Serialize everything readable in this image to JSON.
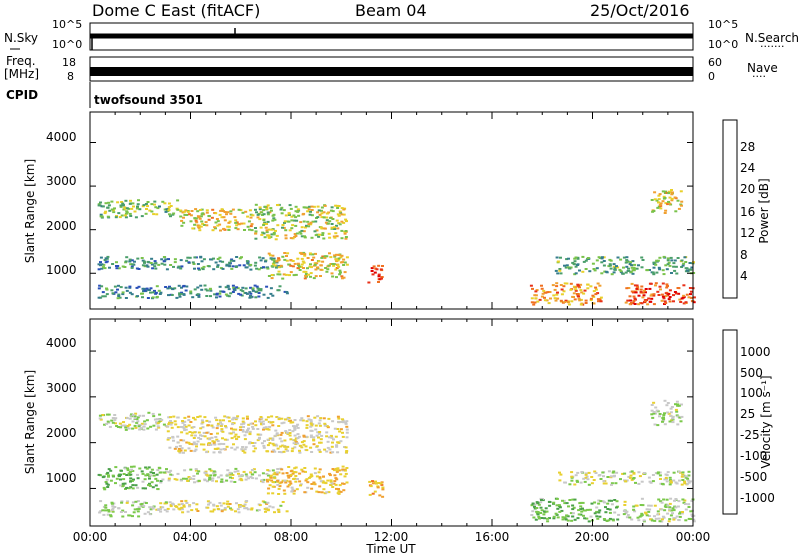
{
  "header": {
    "station": "Dome C East (fitACF)",
    "beam": "Beam 04",
    "date": "25/Oct/2016"
  },
  "nsky_panel": {
    "label": "N.Sky",
    "left_ticks": [
      "10^5",
      "10^0"
    ],
    "right_ticks": [
      "10^5",
      "10^0"
    ],
    "right_label": "N.Search",
    "right_dots": "·······"
  },
  "freq_panel": {
    "label_line1": "Freq.",
    "label_line2": "[MHz]",
    "left_ticks": [
      "18",
      "8"
    ],
    "right_ticks": [
      "60",
      "0"
    ],
    "right_label": "Nave",
    "right_dots": "····"
  },
  "cpid_panel": {
    "label": "CPID",
    "text": "twofsound 3501"
  },
  "chart_data": [
    {
      "type": "heatmap",
      "name": "power",
      "ylabel": "Slant Range [km]",
      "ylim": [
        180,
        4700
      ],
      "yticks": [
        "4000",
        "3000",
        "2000",
        "1000"
      ],
      "xlim": [
        "00:00",
        "24:00"
      ],
      "colorbar": {
        "label": "Power [dB]",
        "ticks": [
          "28",
          "24",
          "20",
          "16",
          "12",
          "8",
          "4"
        ],
        "range": [
          0,
          32
        ],
        "colors": [
          "#1010e0",
          "#2a50b8",
          "#357d8c",
          "#4a9e6a",
          "#79c24a",
          "#e8d02a",
          "#f0a030",
          "#f07020",
          "#e83018",
          "#e00000"
        ]
      },
      "features": [
        {
          "t0": 0.3,
          "t1": 3.5,
          "r0": 2300,
          "r1": 2700,
          "value": 14
        },
        {
          "t0": 3.5,
          "t1": 6.5,
          "r0": 2000,
          "r1": 2500,
          "value": 18
        },
        {
          "t0": 6.5,
          "t1": 10.2,
          "r0": 1800,
          "r1": 2600,
          "value": 16
        },
        {
          "t0": 0.3,
          "t1": 7.5,
          "r0": 1100,
          "r1": 1400,
          "value": 10
        },
        {
          "t0": 7.0,
          "t1": 10.2,
          "r0": 900,
          "r1": 1500,
          "value": 18
        },
        {
          "t0": 0.3,
          "t1": 7.8,
          "r0": 450,
          "r1": 750,
          "value": 9
        },
        {
          "t0": 11.0,
          "t1": 11.6,
          "r0": 800,
          "r1": 1200,
          "value": 26
        },
        {
          "t0": 17.5,
          "t1": 20.3,
          "r0": 300,
          "r1": 800,
          "value": 22
        },
        {
          "t0": 21.2,
          "t1": 24.0,
          "r0": 300,
          "r1": 800,
          "value": 26
        },
        {
          "t0": 18.5,
          "t1": 24.0,
          "r0": 1000,
          "r1": 1400,
          "value": 12
        },
        {
          "t0": 22.3,
          "t1": 23.5,
          "r0": 2400,
          "r1": 2950,
          "value": 18
        }
      ]
    },
    {
      "type": "heatmap",
      "name": "velocity",
      "ylabel": "Slant Range [km]",
      "ylim": [
        180,
        4700
      ],
      "yticks": [
        "4000",
        "3000",
        "2000",
        "1000"
      ],
      "xlim": [
        "00:00",
        "24:00"
      ],
      "xticks": [
        "00:00",
        "04:00",
        "08:00",
        "12:00",
        "16:00",
        "20:00",
        "00:00"
      ],
      "xlabel": "Time UT",
      "colorbar": {
        "label": "Velocity [m s⁻¹]",
        "ticks": [
          "1000",
          "500",
          "100",
          "25",
          "-25",
          "-100",
          "-500",
          "-1000"
        ],
        "range": [
          -1250,
          1250
        ],
        "colors": [
          "#e00000",
          "#f04018",
          "#f07020",
          "#f0a030",
          "#e8d030",
          "#c8c8c8",
          "#7ac84a",
          "#4aa04a",
          "#3a7c72",
          "#2a58a8",
          "#1a3ab0"
        ]
      },
      "features": [
        {
          "t0": 0.3,
          "t1": 3.0,
          "r0": 2300,
          "r1": 2700,
          "value": 60
        },
        {
          "t0": 3.0,
          "t1": 10.2,
          "r0": 1800,
          "r1": 2600,
          "value": -150
        },
        {
          "t0": 0.3,
          "t1": 2.8,
          "r0": 1000,
          "r1": 1500,
          "value": 300
        },
        {
          "t0": 2.8,
          "t1": 7.5,
          "r0": 1150,
          "r1": 1450,
          "value": 0
        },
        {
          "t0": 7.0,
          "t1": 10.2,
          "r0": 900,
          "r1": 1500,
          "value": -300
        },
        {
          "t0": 0.3,
          "t1": 2.5,
          "r0": 400,
          "r1": 750,
          "value": 80
        },
        {
          "t0": 2.5,
          "t1": 7.8,
          "r0": 500,
          "r1": 750,
          "value": -120
        },
        {
          "t0": 11.0,
          "t1": 11.6,
          "r0": 800,
          "r1": 1200,
          "value": -400
        },
        {
          "t0": 17.5,
          "t1": 21.0,
          "r0": 300,
          "r1": 800,
          "value": 300
        },
        {
          "t0": 21.2,
          "t1": 24.0,
          "r0": 300,
          "r1": 800,
          "value": 60
        },
        {
          "t0": 18.5,
          "t1": 24.0,
          "r0": 1100,
          "r1": 1400,
          "value": 0
        },
        {
          "t0": 22.3,
          "t1": 23.5,
          "r0": 2400,
          "r1": 2950,
          "value": 80
        }
      ]
    }
  ]
}
